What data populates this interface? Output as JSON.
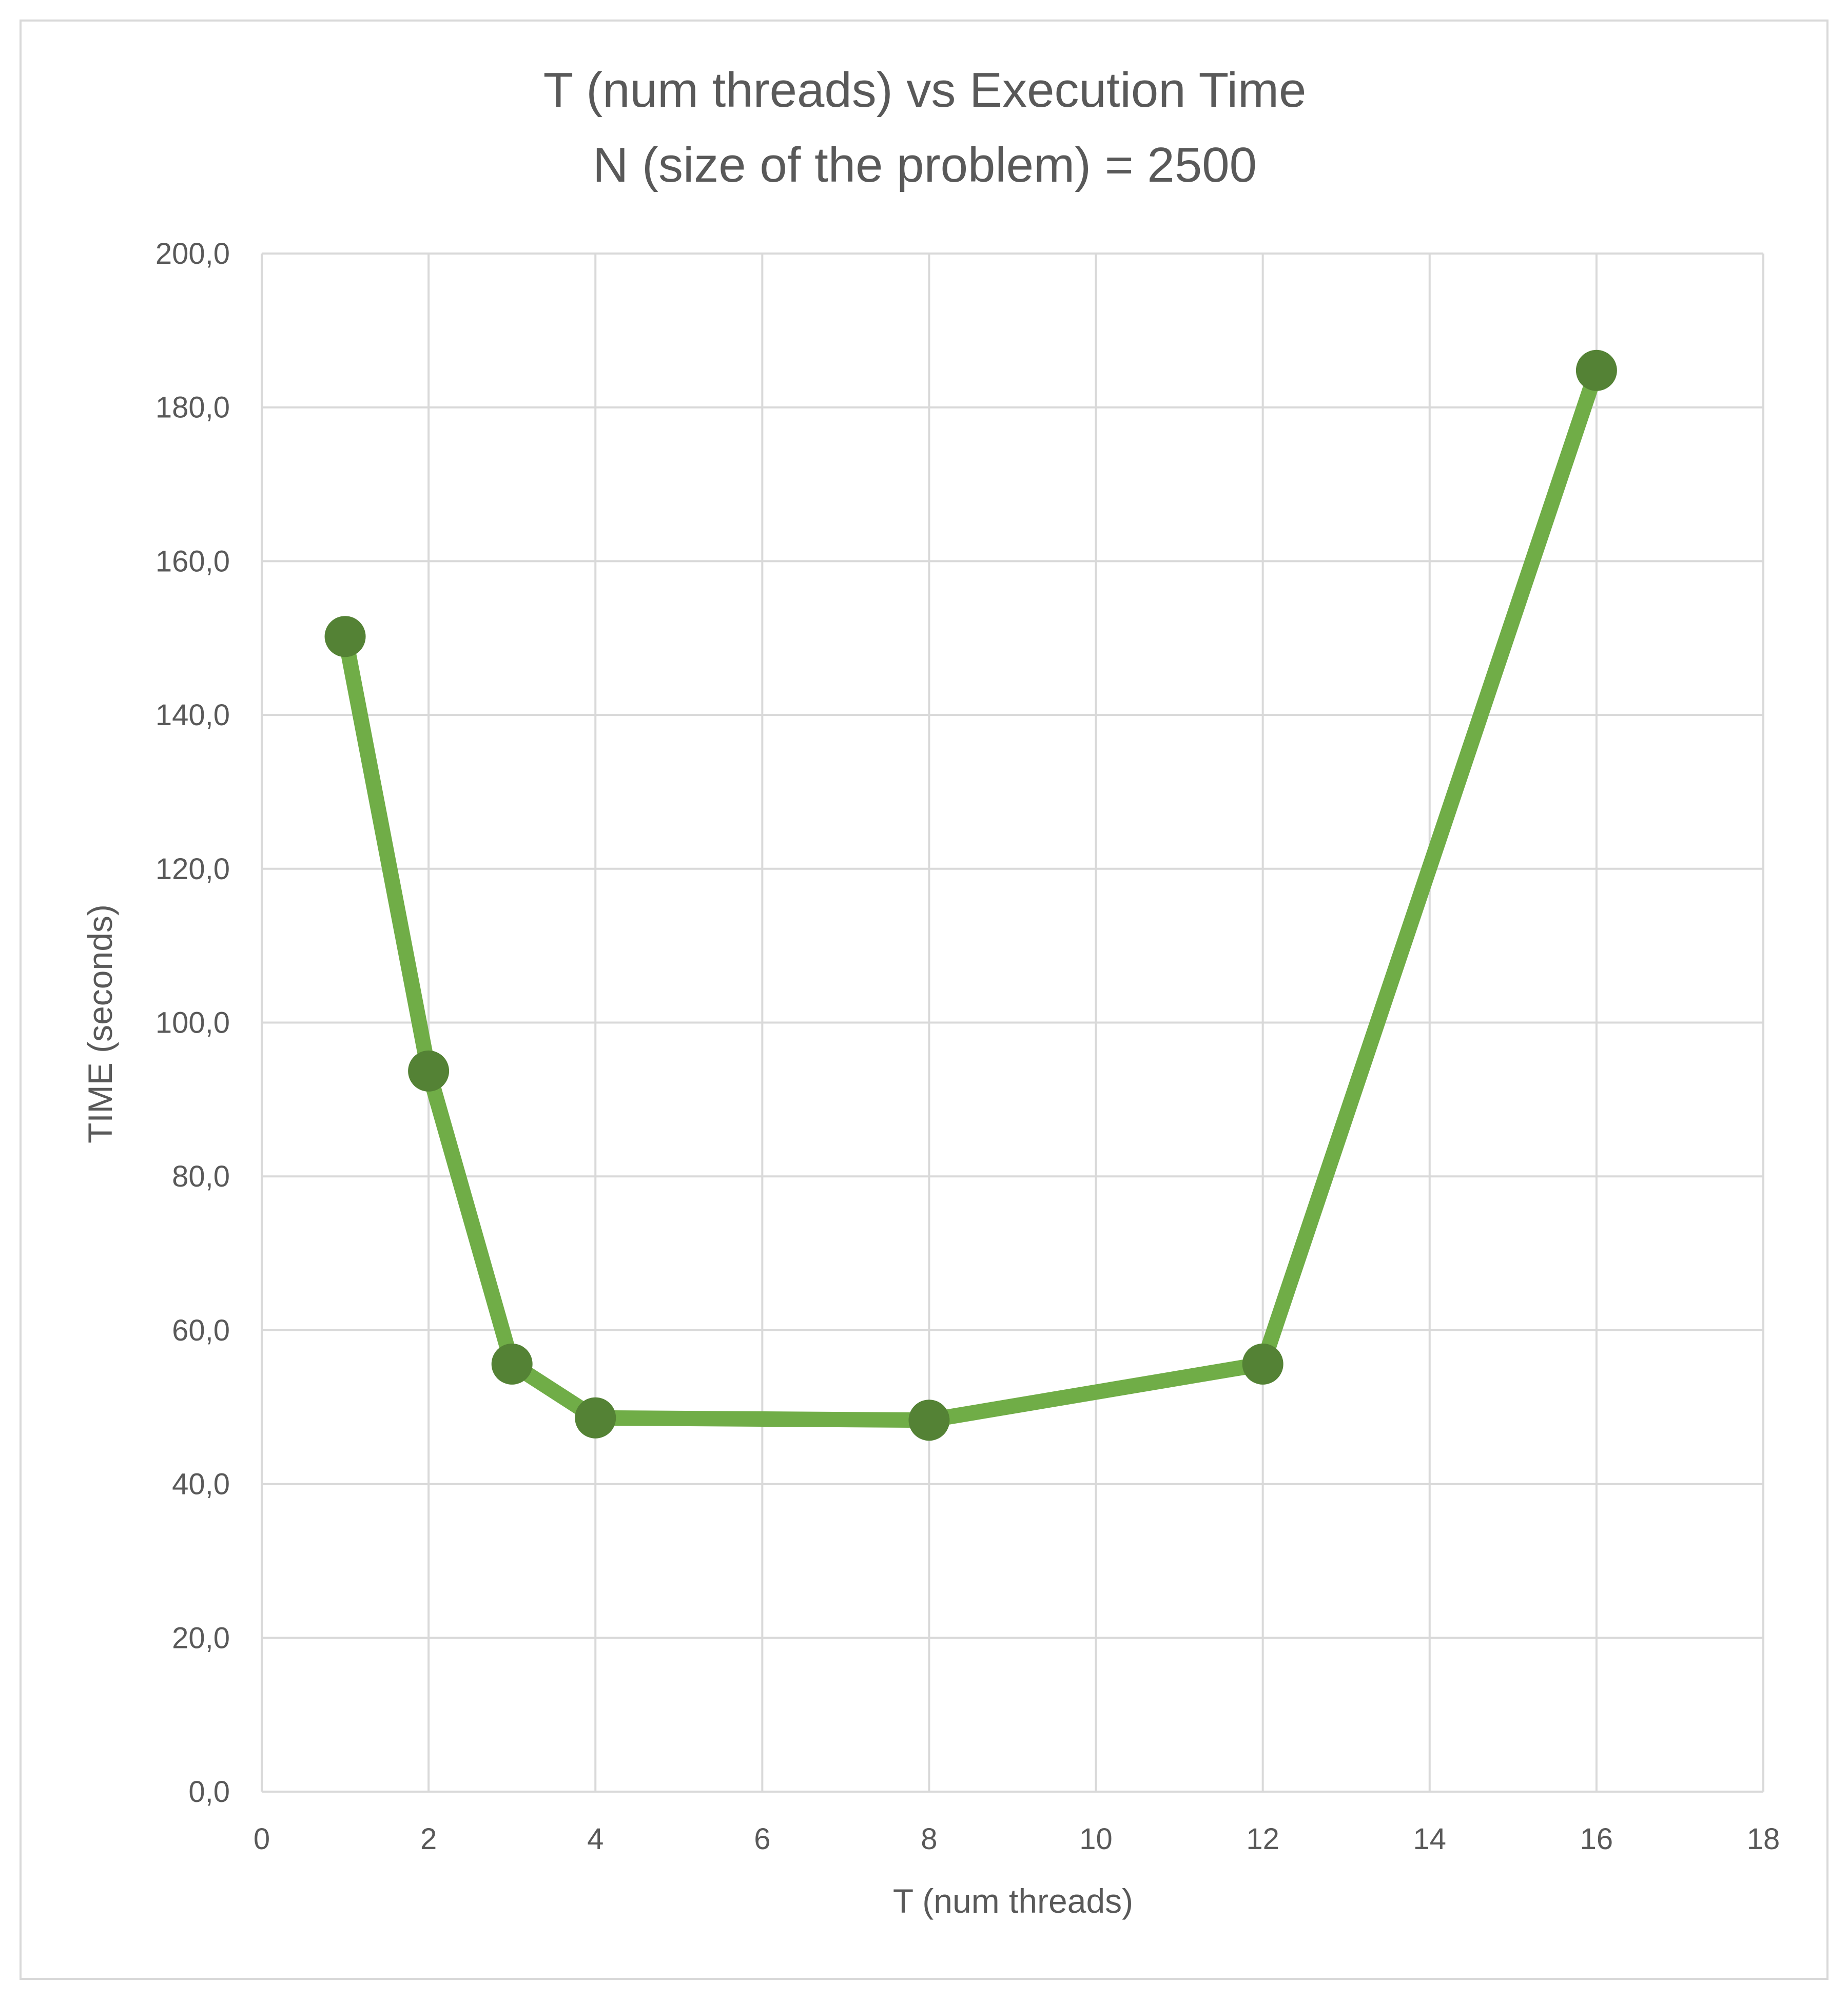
{
  "chart_data": {
    "type": "line",
    "title": "T (num threads) vs Execution Time",
    "subtitle": "N (size of the problem) = 2500",
    "xlabel": "T (num threads)",
    "ylabel": "TIME (seconds)",
    "x": [
      1,
      2,
      3,
      4,
      8,
      12,
      16
    ],
    "series": [
      {
        "values": [
          150.2,
          93.7,
          55.6,
          48.6,
          48.3,
          55.6,
          184.8
        ]
      }
    ],
    "xlim": [
      0,
      18
    ],
    "ylim": [
      0,
      200
    ],
    "xticks": [
      0,
      2,
      4,
      6,
      8,
      10,
      12,
      14,
      16,
      18
    ],
    "xtick_labels": [
      "0",
      "2",
      "4",
      "6",
      "8",
      "10",
      "12",
      "14",
      "16",
      "18"
    ],
    "yticks": [
      0,
      20,
      40,
      60,
      80,
      100,
      120,
      140,
      160,
      180,
      200
    ],
    "ytick_labels": [
      "0,0",
      "20,0",
      "40,0",
      "60,0",
      "80,0",
      "100,0",
      "120,0",
      "140,0",
      "160,0",
      "180,0",
      "200,0"
    ],
    "grid": true,
    "legend": "none",
    "colors": {
      "line": "#70ad47",
      "marker": "#548235",
      "grid": "#d9d9d9",
      "text": "#595959"
    }
  }
}
